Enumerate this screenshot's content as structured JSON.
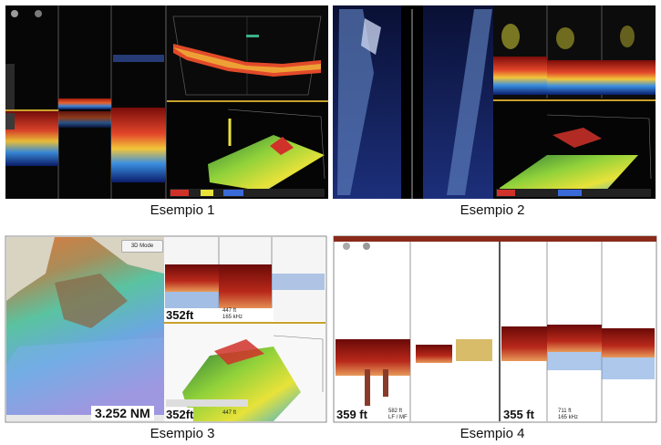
{
  "examples": [
    {
      "caption": "Esempio 1"
    },
    {
      "caption": "Esempio 2"
    },
    {
      "caption": "Esempio 3",
      "mode_button": "3D Mode",
      "distance": "3.252 NM",
      "depth_top": "352ft",
      "freq_top": "447 ft\n165 kHz",
      "depth_bottom": "352ft",
      "freq_bottom": "447 ft"
    },
    {
      "caption": "Esempio 4",
      "depth_left": "359 ft",
      "freq_left": "582 ft\nLF / MF",
      "depth_right": "355 ft",
      "freq_right": "711 ft\n165 kHz"
    }
  ]
}
